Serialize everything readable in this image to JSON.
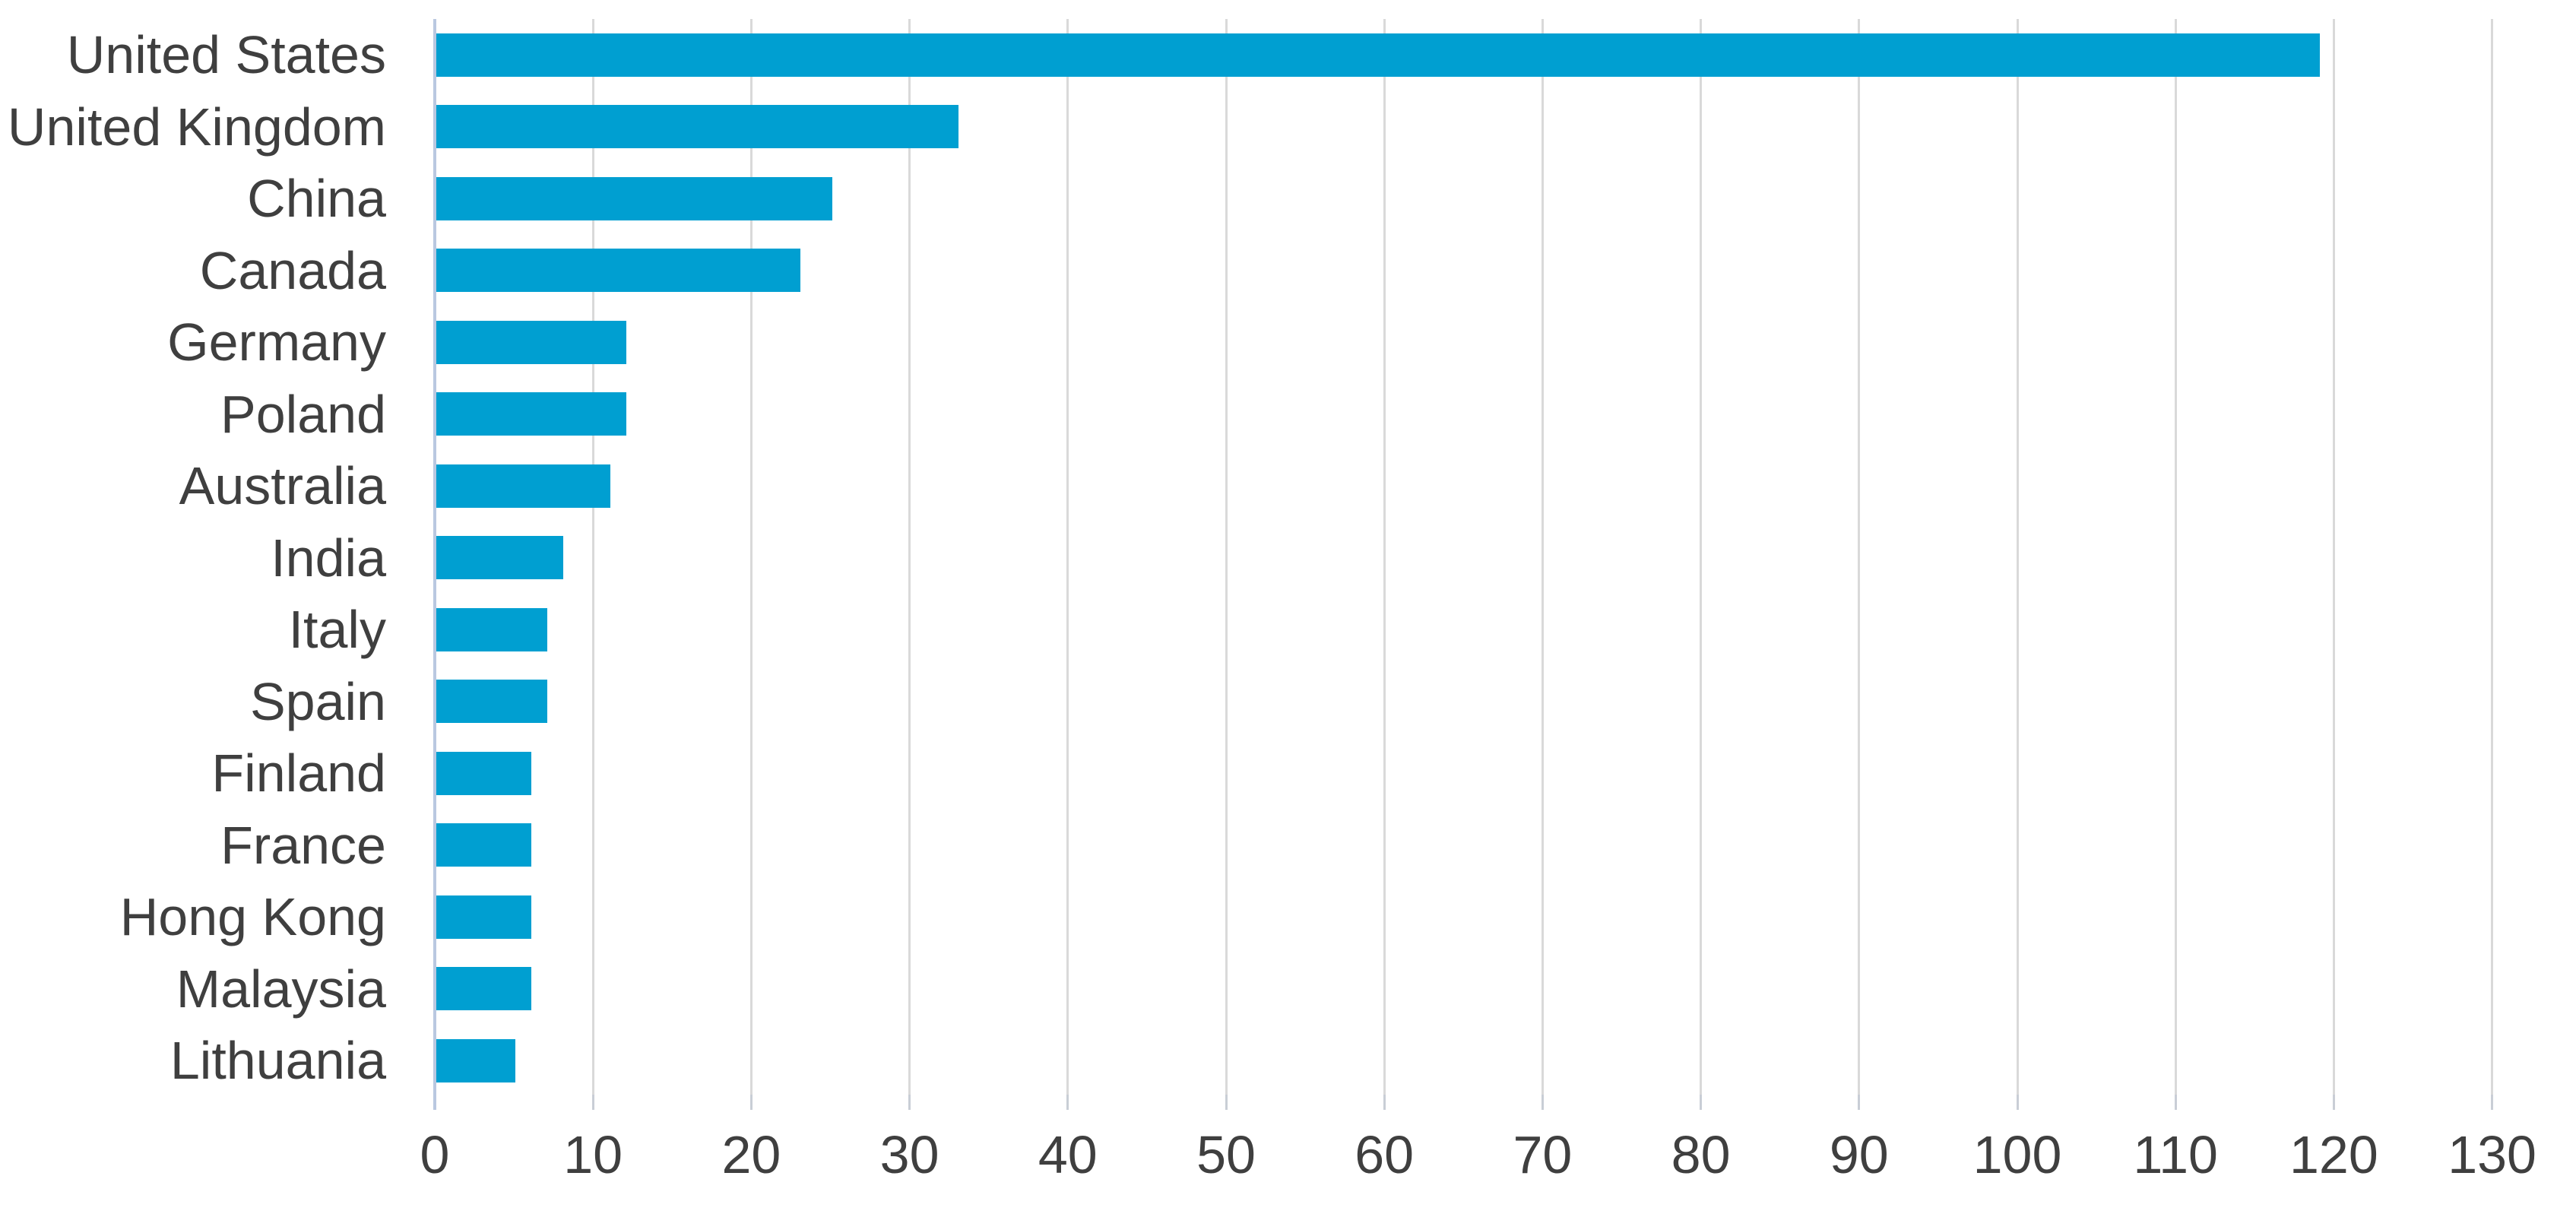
{
  "chart_data": {
    "type": "bar",
    "orientation": "horizontal",
    "title": "",
    "xlabel": "",
    "ylabel": "",
    "categories": [
      "United States",
      "United Kingdom",
      "China",
      "Canada",
      "Germany",
      "Poland",
      "Australia",
      "India",
      "Italy",
      "Spain",
      "Finland",
      "France",
      "Hong Kong",
      "Malaysia",
      "Lithuania"
    ],
    "values": [
      119,
      33,
      25,
      23,
      12,
      12,
      11,
      8,
      7,
      7,
      6,
      6,
      6,
      6,
      5
    ],
    "xlim": [
      0,
      130
    ],
    "xticks": [
      0,
      10,
      20,
      30,
      40,
      50,
      60,
      70,
      80,
      90,
      100,
      110,
      120,
      130
    ],
    "grid": true,
    "legend": "none",
    "colors": {
      "bar": "#009fd1",
      "gridline": "#d9d9d9",
      "axis_line": "#b9c8e0",
      "tick_mark": "#c9ced6",
      "label_text": "#3f3f3f"
    }
  }
}
